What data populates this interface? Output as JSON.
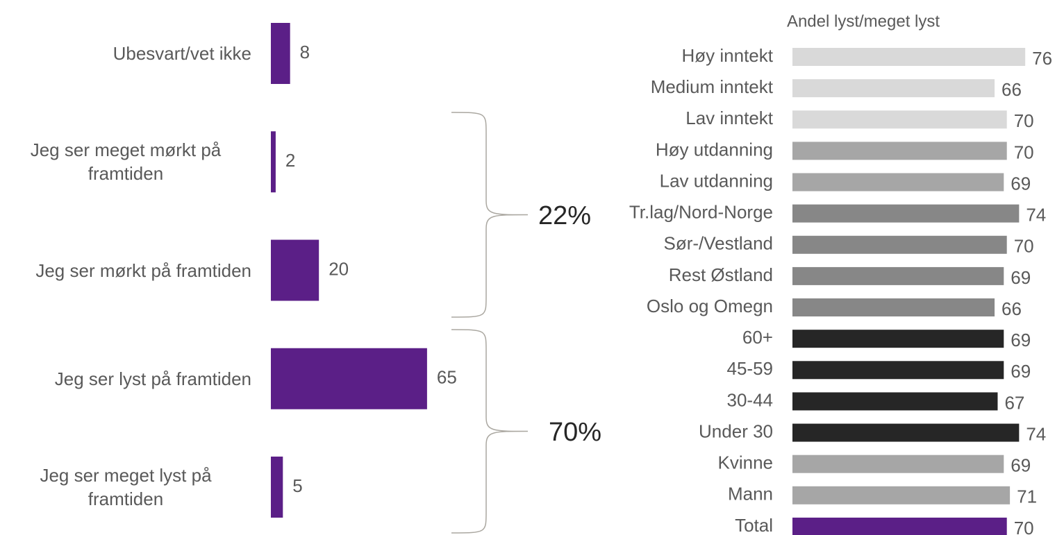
{
  "chart_data": [
    {
      "type": "bar",
      "orientation": "horizontal",
      "categories": [
        "Ubesvart/vet ikke",
        "Jeg ser meget mørkt på framtiden",
        "Jeg ser mørkt på framtiden",
        "Jeg ser lyst på framtiden",
        "Jeg ser meget lyst på framtiden"
      ],
      "values": [
        8,
        2,
        20,
        65,
        5
      ],
      "color": "#5b1f87",
      "annotations": [
        "22%",
        "70%"
      ]
    },
    {
      "type": "bar",
      "orientation": "horizontal",
      "title": "Andel lyst/meget lyst",
      "categories": [
        "Høy inntekt",
        "Medium inntekt",
        "Lav inntekt",
        "Høy utdanning",
        "Lav utdanning",
        "Tr.lag/Nord-Norge",
        "Sør-/Vestland",
        "Rest Østland",
        "Oslo og Omegn",
        "60+",
        "45-59",
        "30-44",
        "Under 30",
        "Kvinne",
        "Mann",
        "Total"
      ],
      "values": [
        76,
        66,
        70,
        70,
        69,
        74,
        70,
        69,
        66,
        69,
        69,
        67,
        74,
        69,
        71,
        70
      ],
      "colors": [
        "#d9d9d9",
        "#d9d9d9",
        "#d9d9d9",
        "#a6a6a6",
        "#a6a6a6",
        "#878787",
        "#878787",
        "#878787",
        "#878787",
        "#262626",
        "#262626",
        "#262626",
        "#262626",
        "#a6a6a6",
        "#a6a6a6",
        "#5b1f87"
      ]
    }
  ]
}
